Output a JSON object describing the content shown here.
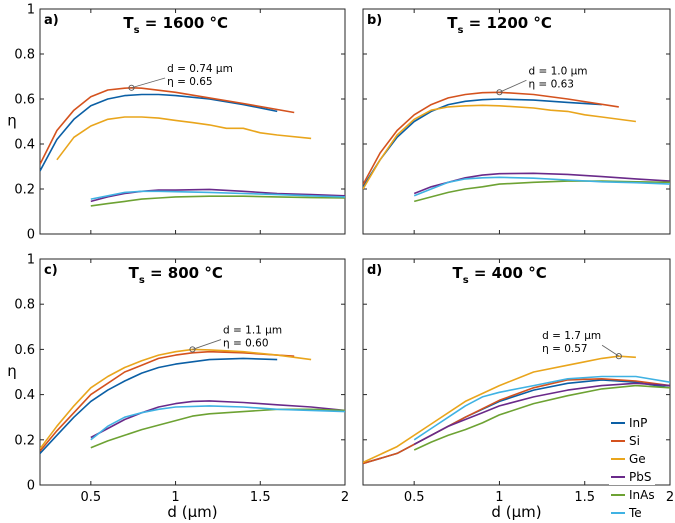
{
  "chart_data": {
    "type": "line",
    "colors": {
      "InP": "#0b5fa5",
      "Si": "#d4521e",
      "Ge": "#e9a51c",
      "PbS": "#6a2a8a",
      "InAs": "#6da233",
      "Te": "#3fb2e3"
    },
    "legend": {
      "placement": "bottom-right",
      "panel": 3,
      "entries": [
        "InP",
        "Si",
        "Ge",
        "PbS",
        "InAs",
        "Te"
      ]
    },
    "xlabel": "d (µm)",
    "ylabel": "η",
    "xlim": [
      0.2,
      2.0
    ],
    "ylim": [
      0,
      1.0
    ],
    "xticks": [
      0.5,
      1,
      1.5,
      2
    ],
    "xtick_labels": [
      "0.5",
      "1",
      "1.5",
      "2"
    ],
    "yticks": [
      0,
      0.2,
      0.4,
      0.6,
      0.8,
      1.0
    ],
    "ytick_labels": [
      "0",
      "0.2",
      "0.4",
      "0.6",
      "0.8",
      "1"
    ],
    "panels": [
      {
        "label": "a)",
        "title_main": "T",
        "title_sub": "s",
        "title_rest": " = 1600 °C",
        "annotation": {
          "line1": "d = 0.74 µm",
          "line2": "η = 0.65",
          "point": [
            0.74,
            0.65
          ],
          "text_at": [
            0.95,
            0.72
          ]
        },
        "series": [
          {
            "name": "InP",
            "x": [
              0.2,
              0.3,
              0.4,
              0.5,
              0.6,
              0.7,
              0.8,
              0.9,
              1.0,
              1.2,
              1.4,
              1.6
            ],
            "y": [
              0.28,
              0.42,
              0.51,
              0.57,
              0.6,
              0.615,
              0.62,
              0.62,
              0.615,
              0.6,
              0.575,
              0.545
            ]
          },
          {
            "name": "Si",
            "x": [
              0.2,
              0.3,
              0.4,
              0.5,
              0.6,
              0.7,
              0.74,
              0.8,
              1.0,
              1.2,
              1.4,
              1.7
            ],
            "y": [
              0.31,
              0.46,
              0.55,
              0.61,
              0.64,
              0.648,
              0.65,
              0.648,
              0.63,
              0.605,
              0.58,
              0.54
            ]
          },
          {
            "name": "Ge",
            "x": [
              0.3,
              0.4,
              0.5,
              0.6,
              0.7,
              0.8,
              0.9,
              1.0,
              1.1,
              1.2,
              1.3,
              1.4,
              1.5,
              1.6,
              1.8
            ],
            "y": [
              0.33,
              0.43,
              0.48,
              0.51,
              0.52,
              0.52,
              0.515,
              0.505,
              0.495,
              0.485,
              0.47,
              0.47,
              0.45,
              0.44,
              0.425
            ]
          },
          {
            "name": "PbS",
            "x": [
              0.5,
              0.6,
              0.7,
              0.8,
              0.9,
              1.0,
              1.2,
              1.4,
              1.6,
              1.8,
              2.0
            ],
            "y": [
              0.145,
              0.165,
              0.18,
              0.19,
              0.195,
              0.195,
              0.198,
              0.19,
              0.18,
              0.175,
              0.17
            ]
          },
          {
            "name": "InAs",
            "x": [
              0.5,
              0.6,
              0.7,
              0.8,
              0.9,
              1.0,
              1.2,
              1.4,
              1.6,
              1.8,
              2.0
            ],
            "y": [
              0.125,
              0.135,
              0.145,
              0.155,
              0.16,
              0.165,
              0.168,
              0.168,
              0.165,
              0.162,
              0.16
            ]
          },
          {
            "name": "Te",
            "x": [
              0.5,
              0.6,
              0.7,
              0.8,
              0.9,
              1.0,
              1.2,
              1.4,
              1.6,
              1.8,
              2.0
            ],
            "y": [
              0.155,
              0.17,
              0.185,
              0.19,
              0.19,
              0.188,
              0.185,
              0.18,
              0.175,
              0.17,
              0.165
            ]
          }
        ]
      },
      {
        "label": "b)",
        "title_main": "T",
        "title_sub": "s",
        "title_rest": " = 1200 °C",
        "annotation": {
          "line1": "d = 1.0 µm",
          "line2": "η = 0.63",
          "point": [
            1.0,
            0.63
          ],
          "text_at": [
            1.17,
            0.71
          ]
        },
        "series": [
          {
            "name": "InP",
            "x": [
              0.2,
              0.3,
              0.4,
              0.5,
              0.6,
              0.7,
              0.8,
              0.9,
              1.0,
              1.2,
              1.4,
              1.6
            ],
            "y": [
              0.21,
              0.33,
              0.43,
              0.5,
              0.545,
              0.575,
              0.59,
              0.597,
              0.6,
              0.595,
              0.585,
              0.575
            ]
          },
          {
            "name": "Si",
            "x": [
              0.2,
              0.3,
              0.4,
              0.5,
              0.6,
              0.7,
              0.8,
              0.9,
              1.0,
              1.2,
              1.4,
              1.7
            ],
            "y": [
              0.22,
              0.36,
              0.46,
              0.53,
              0.575,
              0.605,
              0.62,
              0.628,
              0.63,
              0.62,
              0.6,
              0.565
            ]
          },
          {
            "name": "Ge",
            "x": [
              0.2,
              0.3,
              0.4,
              0.5,
              0.6,
              0.7,
              0.8,
              0.9,
              1.0,
              1.2,
              1.3,
              1.4,
              1.5,
              1.6,
              1.8
            ],
            "y": [
              0.2,
              0.33,
              0.44,
              0.51,
              0.55,
              0.565,
              0.57,
              0.572,
              0.57,
              0.56,
              0.55,
              0.545,
              0.53,
              0.52,
              0.5
            ]
          },
          {
            "name": "PbS",
            "x": [
              0.5,
              0.6,
              0.7,
              0.8,
              0.9,
              1.0,
              1.2,
              1.4,
              1.6,
              1.8,
              2.0
            ],
            "y": [
              0.18,
              0.21,
              0.23,
              0.25,
              0.262,
              0.268,
              0.27,
              0.265,
              0.255,
              0.245,
              0.235
            ]
          },
          {
            "name": "InAs",
            "x": [
              0.5,
              0.6,
              0.7,
              0.8,
              0.9,
              1.0,
              1.2,
              1.4,
              1.6,
              1.8,
              2.0
            ],
            "y": [
              0.145,
              0.165,
              0.185,
              0.2,
              0.21,
              0.222,
              0.23,
              0.235,
              0.235,
              0.232,
              0.23
            ]
          },
          {
            "name": "Te",
            "x": [
              0.5,
              0.6,
              0.7,
              0.8,
              0.9,
              1.0,
              1.2,
              1.4,
              1.6,
              1.8,
              2.0
            ],
            "y": [
              0.17,
              0.2,
              0.23,
              0.245,
              0.25,
              0.252,
              0.248,
              0.24,
              0.232,
              0.228,
              0.222
            ]
          }
        ]
      },
      {
        "label": "c)",
        "title_main": "T",
        "title_sub": "s",
        "title_rest": " = 800 °C",
        "annotation": {
          "line1": "d = 1.1 µm",
          "line2": "η = 0.60",
          "point": [
            1.1,
            0.6
          ],
          "text_at": [
            1.28,
            0.67
          ]
        },
        "series": [
          {
            "name": "InP",
            "x": [
              0.2,
              0.3,
              0.4,
              0.5,
              0.6,
              0.7,
              0.8,
              0.9,
              1.0,
              1.2,
              1.4,
              1.6
            ],
            "y": [
              0.14,
              0.22,
              0.3,
              0.37,
              0.42,
              0.46,
              0.495,
              0.52,
              0.535,
              0.555,
              0.56,
              0.555
            ]
          },
          {
            "name": "Si",
            "x": [
              0.2,
              0.3,
              0.4,
              0.5,
              0.6,
              0.7,
              0.8,
              0.9,
              1.0,
              1.1,
              1.2,
              1.4,
              1.7
            ],
            "y": [
              0.15,
              0.24,
              0.32,
              0.4,
              0.45,
              0.5,
              0.53,
              0.56,
              0.575,
              0.585,
              0.59,
              0.585,
              0.57
            ]
          },
          {
            "name": "Ge",
            "x": [
              0.2,
              0.3,
              0.4,
              0.5,
              0.6,
              0.7,
              0.8,
              0.9,
              1.0,
              1.1,
              1.2,
              1.4,
              1.6,
              1.8
            ],
            "y": [
              0.16,
              0.26,
              0.35,
              0.43,
              0.48,
              0.52,
              0.55,
              0.575,
              0.59,
              0.6,
              0.598,
              0.59,
              0.575,
              0.555
            ]
          },
          {
            "name": "PbS",
            "x": [
              0.5,
              0.6,
              0.7,
              0.8,
              0.9,
              1.0,
              1.1,
              1.2,
              1.4,
              1.6,
              1.8,
              2.0
            ],
            "y": [
              0.21,
              0.25,
              0.29,
              0.32,
              0.345,
              0.36,
              0.37,
              0.372,
              0.365,
              0.355,
              0.345,
              0.33
            ]
          },
          {
            "name": "InAs",
            "x": [
              0.5,
              0.6,
              0.7,
              0.8,
              0.9,
              1.0,
              1.1,
              1.2,
              1.4,
              1.6,
              1.8,
              2.0
            ],
            "y": [
              0.165,
              0.195,
              0.22,
              0.245,
              0.265,
              0.285,
              0.305,
              0.315,
              0.325,
              0.335,
              0.335,
              0.33
            ]
          },
          {
            "name": "Te",
            "x": [
              0.5,
              0.6,
              0.7,
              0.8,
              0.9,
              1.0,
              1.2,
              1.4,
              1.6,
              1.8,
              2.0
            ],
            "y": [
              0.2,
              0.26,
              0.3,
              0.32,
              0.335,
              0.345,
              0.35,
              0.345,
              0.335,
              0.33,
              0.325
            ]
          }
        ]
      },
      {
        "label": "d)",
        "title_main": "T",
        "title_sub": "s",
        "title_rest": " = 400 °C",
        "annotation": {
          "line1": "d = 1.7 µm",
          "line2": "η = 0.57",
          "point": [
            1.7,
            0.57
          ],
          "text_at": [
            1.25,
            0.645
          ]
        },
        "series": [
          {
            "name": "InP",
            "x": [
              0.2,
              0.4,
              0.6,
              0.8,
              1.0,
              1.2,
              1.4,
              1.6,
              1.8,
              2.0
            ],
            "y": [
              0.095,
              0.14,
              0.22,
              0.3,
              0.37,
              0.42,
              0.45,
              0.465,
              0.455,
              0.43
            ]
          },
          {
            "name": "Si",
            "x": [
              0.2,
              0.4,
              0.6,
              0.8,
              1.0,
              1.2,
              1.4,
              1.6,
              1.8,
              2.0
            ],
            "y": [
              0.095,
              0.14,
              0.22,
              0.3,
              0.375,
              0.43,
              0.465,
              0.47,
              0.46,
              0.44
            ]
          },
          {
            "name": "Ge",
            "x": [
              0.2,
              0.4,
              0.6,
              0.8,
              1.0,
              1.2,
              1.4,
              1.5,
              1.6,
              1.7,
              1.8
            ],
            "y": [
              0.1,
              0.17,
              0.27,
              0.37,
              0.44,
              0.5,
              0.53,
              0.545,
              0.56,
              0.57,
              0.565
            ]
          },
          {
            "name": "PbS",
            "x": [
              0.5,
              0.6,
              0.7,
              0.8,
              0.9,
              1.0,
              1.2,
              1.4,
              1.6,
              1.8,
              2.0
            ],
            "y": [
              0.18,
              0.22,
              0.26,
              0.29,
              0.32,
              0.35,
              0.39,
              0.42,
              0.44,
              0.45,
              0.44
            ]
          },
          {
            "name": "InAs",
            "x": [
              0.5,
              0.6,
              0.7,
              0.8,
              0.9,
              1.0,
              1.2,
              1.4,
              1.6,
              1.8,
              2.0
            ],
            "y": [
              0.155,
              0.19,
              0.22,
              0.245,
              0.275,
              0.31,
              0.36,
              0.395,
              0.425,
              0.44,
              0.43
            ]
          },
          {
            "name": "Te",
            "x": [
              0.5,
              0.6,
              0.7,
              0.8,
              0.9,
              1.0,
              1.2,
              1.4,
              1.6,
              1.8,
              2.0
            ],
            "y": [
              0.2,
              0.25,
              0.3,
              0.35,
              0.39,
              0.41,
              0.44,
              0.47,
              0.48,
              0.48,
              0.455
            ]
          }
        ]
      }
    ]
  }
}
